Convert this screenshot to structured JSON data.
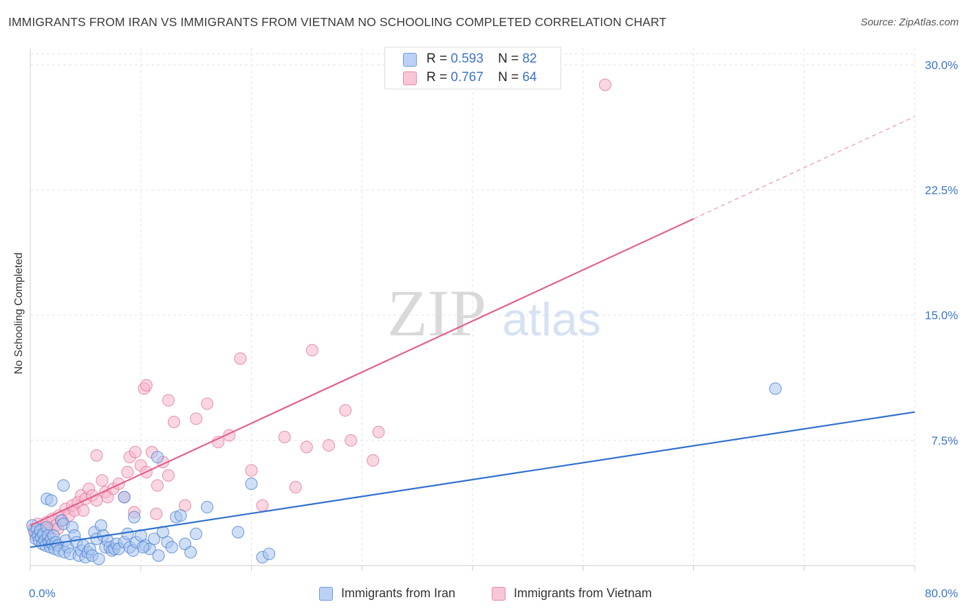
{
  "title": "IMMIGRANTS FROM IRAN VS IMMIGRANTS FROM VIETNAM NO SCHOOLING COMPLETED CORRELATION CHART",
  "source": "Source: ZipAtlas.com",
  "watermark": {
    "zip": "ZIP",
    "atlas": "atlas"
  },
  "legend": {
    "r_label": "R =",
    "n_label": "N =",
    "rows": [
      {
        "r": "0.593",
        "n": "82"
      },
      {
        "r": "0.767",
        "n": "64"
      }
    ]
  },
  "colors": {
    "iran_fill": "#a9c4ef",
    "iran_stroke": "#4a80d0",
    "iran_line": "#2f6fce",
    "vietnam_fill": "#f6b5c9",
    "vietnam_stroke": "#e0789c",
    "vietnam_line": "#e25f8e",
    "tick_label": "#3b73c9",
    "grid": "#e4e4e4"
  },
  "chart_data": {
    "type": "scatter",
    "title": "IMMIGRANTS FROM IRAN VS IMMIGRANTS FROM VIETNAM NO SCHOOLING COMPLETED CORRELATION CHART",
    "xlabel": "",
    "ylabel": "No Schooling Completed",
    "xlim": [
      0,
      80
    ],
    "ylim": [
      0,
      31
    ],
    "x_tick_labels": [
      "0.0%",
      "80.0%"
    ],
    "y_ticks": [
      7.5,
      15.0,
      22.5,
      30.0
    ],
    "y_tick_labels": [
      "7.5%",
      "15.0%",
      "22.5%",
      "30.0%"
    ],
    "grid": true,
    "legend_position": "top-center",
    "series": [
      {
        "name": "Immigrants from Iran",
        "r": 0.593,
        "n": 82,
        "trend": {
          "x": [
            0,
            80
          ],
          "y": [
            1.1,
            9.2
          ],
          "dashed_from": null
        },
        "points": [
          [
            0.2,
            2.4
          ],
          [
            0.4,
            2.0
          ],
          [
            0.5,
            1.6
          ],
          [
            0.6,
            2.2
          ],
          [
            0.7,
            1.8
          ],
          [
            0.8,
            1.5
          ],
          [
            0.9,
            2.1
          ],
          [
            1.0,
            1.7
          ],
          [
            1.1,
            1.3
          ],
          [
            1.2,
            1.9
          ],
          [
            1.3,
            1.5
          ],
          [
            1.4,
            1.2
          ],
          [
            1.5,
            2.3
          ],
          [
            1.6,
            1.8
          ],
          [
            1.7,
            1.4
          ],
          [
            1.8,
            1.1
          ],
          [
            1.9,
            1.6
          ],
          [
            2.0,
            1.3
          ],
          [
            2.1,
            1.8
          ],
          [
            2.2,
            1.0
          ],
          [
            2.3,
            1.4
          ],
          [
            2.5,
            1.2
          ],
          [
            2.6,
            0.9
          ],
          [
            2.8,
            2.7
          ],
          [
            3.0,
            2.5
          ],
          [
            3.1,
            0.8
          ],
          [
            3.2,
            1.5
          ],
          [
            3.4,
            1.1
          ],
          [
            3.6,
            0.7
          ],
          [
            3.8,
            2.3
          ],
          [
            4.0,
            1.8
          ],
          [
            4.2,
            1.4
          ],
          [
            4.4,
            0.6
          ],
          [
            4.6,
            0.9
          ],
          [
            4.8,
            1.2
          ],
          [
            5.0,
            0.5
          ],
          [
            5.2,
            0.8
          ],
          [
            5.4,
            1.0
          ],
          [
            5.6,
            0.6
          ],
          [
            5.8,
            2.0
          ],
          [
            6.0,
            1.6
          ],
          [
            6.2,
            0.4
          ],
          [
            6.4,
            2.4
          ],
          [
            6.6,
            1.8
          ],
          [
            6.8,
            1.1
          ],
          [
            7.0,
            1.5
          ],
          [
            7.2,
            1.1
          ],
          [
            7.4,
            0.9
          ],
          [
            7.6,
            1.0
          ],
          [
            7.8,
            1.3
          ],
          [
            8.0,
            1.0
          ],
          [
            8.5,
            1.4
          ],
          [
            8.8,
            1.9
          ],
          [
            9.0,
            1.1
          ],
          [
            9.3,
            0.9
          ],
          [
            9.6,
            1.4
          ],
          [
            10.0,
            1.8
          ],
          [
            10.4,
            1.2
          ],
          [
            10.8,
            1.0
          ],
          [
            11.2,
            1.6
          ],
          [
            11.6,
            0.6
          ],
          [
            12.0,
            2.0
          ],
          [
            12.4,
            1.4
          ],
          [
            12.8,
            1.1
          ],
          [
            13.2,
            2.9
          ],
          [
            13.6,
            3.0
          ],
          [
            14.0,
            1.3
          ],
          [
            14.5,
            0.8
          ],
          [
            15.0,
            1.9
          ],
          [
            16.0,
            3.5
          ],
          [
            18.8,
            2.0
          ],
          [
            20.0,
            4.9
          ],
          [
            21.0,
            0.5
          ],
          [
            21.6,
            0.7
          ],
          [
            1.5,
            4.0
          ],
          [
            3.0,
            4.8
          ],
          [
            8.5,
            4.1
          ],
          [
            10.2,
            1.1
          ],
          [
            9.4,
            2.9
          ],
          [
            11.5,
            6.5
          ],
          [
            1.9,
            3.9
          ],
          [
            67.4,
            10.6
          ]
        ]
      },
      {
        "name": "Immigrants from Vietnam",
        "r": 0.767,
        "n": 64,
        "trend": {
          "x": [
            0,
            80
          ],
          "y": [
            2.4,
            26.9
          ],
          "dashed_from": 60
        },
        "points": [
          [
            0.3,
            2.2
          ],
          [
            0.5,
            1.8
          ],
          [
            0.7,
            2.5
          ],
          [
            0.9,
            2.0
          ],
          [
            1.1,
            1.9
          ],
          [
            1.3,
            2.3
          ],
          [
            1.5,
            2.6
          ],
          [
            1.7,
            2.2
          ],
          [
            2.0,
            2.8
          ],
          [
            2.3,
            2.4
          ],
          [
            2.6,
            3.0
          ],
          [
            2.9,
            2.7
          ],
          [
            3.2,
            3.4
          ],
          [
            3.5,
            3.0
          ],
          [
            3.8,
            3.6
          ],
          [
            4.0,
            3.3
          ],
          [
            4.3,
            3.8
          ],
          [
            4.6,
            4.2
          ],
          [
            5.0,
            4.0
          ],
          [
            5.3,
            4.6
          ],
          [
            5.6,
            4.2
          ],
          [
            6.0,
            3.9
          ],
          [
            6.5,
            5.1
          ],
          [
            6.8,
            4.4
          ],
          [
            7.0,
            4.1
          ],
          [
            7.5,
            4.6
          ],
          [
            8.0,
            4.9
          ],
          [
            8.5,
            4.1
          ],
          [
            9.0,
            6.5
          ],
          [
            9.5,
            6.8
          ],
          [
            10.0,
            6.0
          ],
          [
            10.5,
            5.6
          ],
          [
            11.0,
            6.8
          ],
          [
            11.5,
            4.8
          ],
          [
            12.0,
            6.2
          ],
          [
            12.5,
            5.4
          ],
          [
            13.0,
            8.6
          ],
          [
            14.0,
            3.6
          ],
          [
            15.0,
            8.8
          ],
          [
            16.0,
            9.7
          ],
          [
            17.0,
            7.4
          ],
          [
            18.0,
            7.8
          ],
          [
            19.0,
            12.4
          ],
          [
            20.0,
            5.7
          ],
          [
            21.0,
            3.6
          ],
          [
            23.0,
            7.7
          ],
          [
            24.0,
            4.7
          ],
          [
            25.0,
            7.1
          ],
          [
            25.5,
            12.9
          ],
          [
            27.0,
            7.2
          ],
          [
            28.5,
            9.3
          ],
          [
            29.0,
            7.5
          ],
          [
            31.0,
            6.3
          ],
          [
            31.5,
            8.0
          ],
          [
            10.3,
            10.6
          ],
          [
            10.5,
            10.8
          ],
          [
            12.5,
            9.9
          ],
          [
            6.0,
            6.6
          ],
          [
            4.8,
            3.3
          ],
          [
            9.4,
            3.2
          ],
          [
            11.4,
            3.1
          ],
          [
            8.8,
            5.6
          ],
          [
            2.5,
            2.2
          ],
          [
            52.0,
            28.8
          ]
        ]
      }
    ]
  }
}
